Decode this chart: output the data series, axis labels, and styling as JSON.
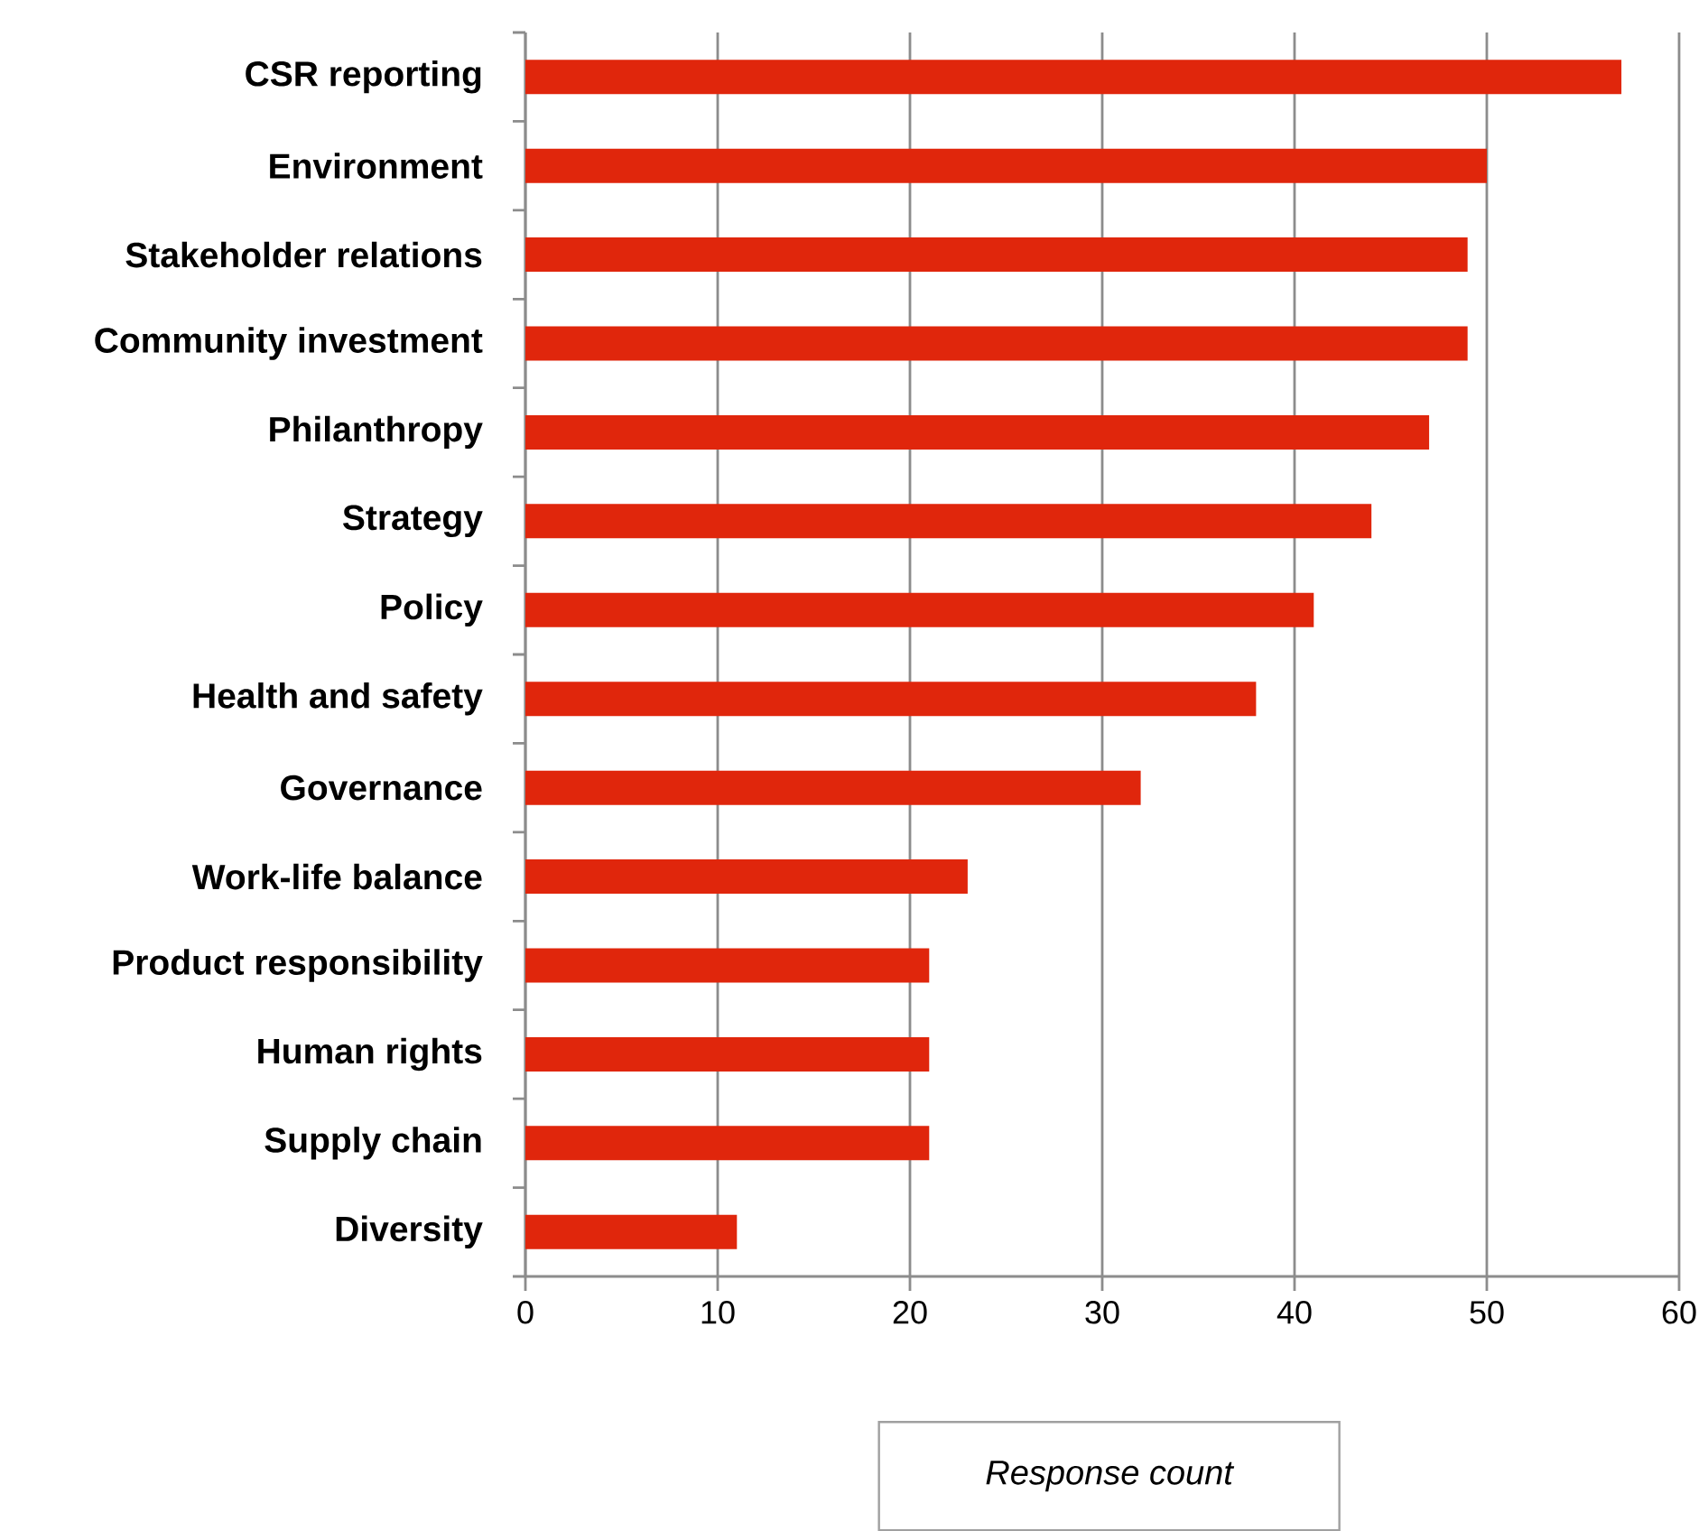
{
  "chart_data": {
    "type": "bar",
    "orientation": "horizontal",
    "categories": [
      "CSR reporting",
      "Environment",
      "Stakeholder relations",
      "Community investment",
      "Philanthropy",
      "Strategy",
      "Policy",
      "Health and safety",
      "Governance",
      "Work-life balance",
      "Product responsibility",
      "Human rights",
      "Supply chain",
      "Diversity"
    ],
    "values": [
      57,
      50,
      49,
      49,
      47,
      44,
      41,
      38,
      32,
      23,
      21,
      21,
      21,
      11
    ],
    "color": "#e0260c",
    "xlabel": "Response count",
    "xlim": [
      0,
      60
    ],
    "xticks": [
      0,
      10,
      20,
      30,
      40,
      50,
      60
    ],
    "grid": "x"
  }
}
